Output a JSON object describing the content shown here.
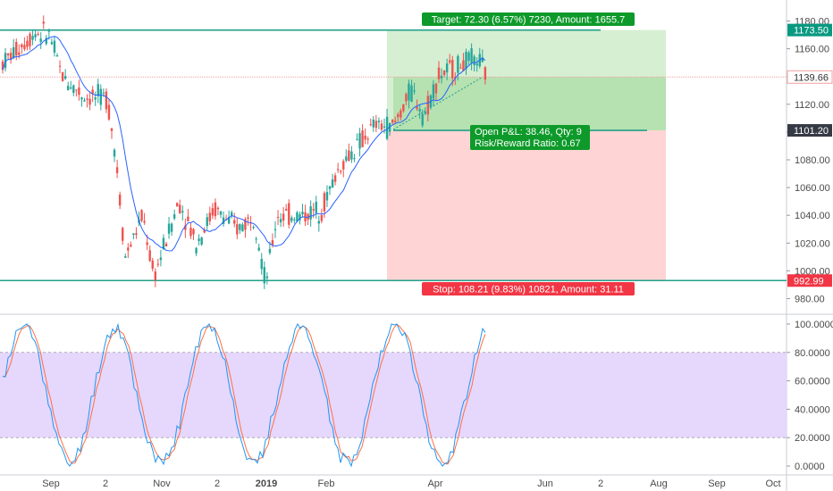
{
  "chart_data": [
    {
      "type": "candlestick",
      "ylim": [
        970,
        1190
      ],
      "price_ticks": [
        "1180.00",
        "1160.00",
        "1140.00",
        "1120.00",
        "1100.00",
        "1080.00",
        "1060.00",
        "1040.00",
        "1020.00",
        "1000.00",
        "980.00"
      ],
      "price_tags": [
        {
          "value": "1173.50",
          "bg": "#089981"
        },
        {
          "value": "1139.66",
          "bg": "#ffffff",
          "fg": "#333333",
          "border": "#f0a0a0"
        },
        {
          "value": "1101.20",
          "bg": "#363a45"
        },
        {
          "value": "992.99",
          "bg": "#f23645"
        }
      ],
      "x_ticks": [
        "Sep",
        "2",
        "Nov",
        "2",
        "2019",
        "Feb",
        "Apr",
        "Jun",
        "2",
        "Aug",
        "Sep",
        "Oct"
      ],
      "position": {
        "target_label": "Target: 72.30 (6.57%) 7230, Amount: 1655.7",
        "pnl_label": "Open P&L: 38.46, Qty: 9",
        "rr_label": "Risk/Reward Ratio: 0.67",
        "stop_label": "Stop: 108.21 (9.83%) 10821, Amount: 31.11",
        "target_price": 1173.5,
        "entry_price": 1101.2,
        "stop_price": 992.99,
        "current_price": 1139.66
      },
      "horizontal_lines": [
        1173.5,
        992.99
      ],
      "colors": {
        "up": "#26a69a",
        "down": "#ef5350",
        "ma": "#2962ff",
        "target_zone": "#d6efd2",
        "stop_zone": "#ffd4d4",
        "line": "#22a08a"
      }
    },
    {
      "type": "line",
      "name_hint": "stochastic",
      "ylim": [
        -5,
        105
      ],
      "ticks": [
        "100.0000",
        "80.0000",
        "60.0000",
        "40.0000",
        "20.0000",
        "0.0000"
      ],
      "band": [
        20,
        80
      ],
      "colors": {
        "k": "#2196f3",
        "d": "#ff7043",
        "band": "#e6d7fd"
      }
    }
  ]
}
